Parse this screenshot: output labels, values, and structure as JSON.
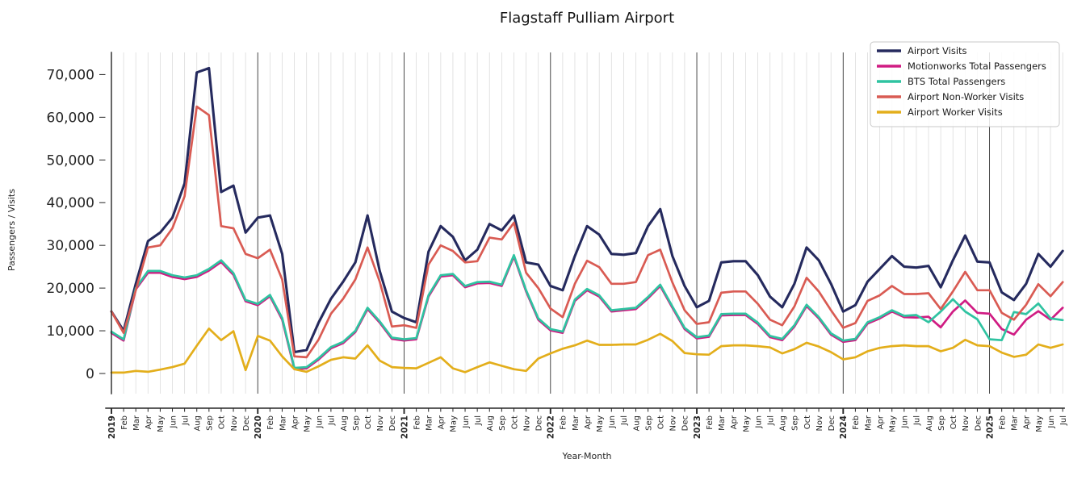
{
  "title": "Flagstaff Pulliam Airport",
  "chart_data": {
    "type": "line",
    "title": "Flagstaff Pulliam Airport",
    "xlabel": "Year-Month",
    "ylabel": "Passengers / Visits",
    "legend_position": "upper right",
    "grid": "vertical gridline at every month; dark vertical line at every January",
    "ylim": [
      -4700,
      75300
    ],
    "yticks": [
      0,
      10000,
      20000,
      30000,
      40000,
      50000,
      60000,
      70000
    ],
    "ytick_labels": [
      "0",
      "10,000",
      "20,000",
      "30,000",
      "40,000",
      "50,000",
      "60,000",
      "70,000"
    ],
    "x_tick_labels": [
      "2019",
      "Feb",
      "Mar",
      "Apr",
      "May",
      "Jun",
      "Jul",
      "Aug",
      "Sep",
      "Oct",
      "Nov",
      "Dec",
      "2020",
      "Feb",
      "Mar",
      "Apr",
      "May",
      "Jun",
      "Jul",
      "Aug",
      "Sep",
      "Oct",
      "Nov",
      "Dec",
      "2021",
      "Feb",
      "Mar",
      "Apr",
      "May",
      "Jun",
      "Jul",
      "Aug",
      "Sep",
      "Oct",
      "Nov",
      "Dec",
      "2022",
      "Feb",
      "Mar",
      "Apr",
      "May",
      "Jun",
      "Jul",
      "Aug",
      "Sep",
      "Oct",
      "Nov",
      "Dec",
      "2023",
      "Feb",
      "Mar",
      "Apr",
      "May",
      "Jun",
      "Jul",
      "Aug",
      "Sep",
      "Oct",
      "Nov",
      "Dec",
      "2024",
      "Feb",
      "Mar",
      "Apr",
      "May",
      "Jun",
      "Jul",
      "Aug",
      "Sep",
      "Oct",
      "Nov",
      "Dec",
      "2025",
      "Feb",
      "Mar",
      "Apr",
      "May",
      "Jun",
      "Jul"
    ],
    "series": [
      {
        "name": "Airport Visits",
        "color": "#252a5e",
        "width": 3.1,
        "values": [
          14500,
          10000,
          21000,
          31000,
          33000,
          36500,
          44500,
          70500,
          71500,
          42500,
          44000,
          33000,
          36500,
          37000,
          28000,
          5000,
          5500,
          12000,
          17500,
          21500,
          26000,
          37000,
          24000,
          14500,
          13000,
          12000,
          28500,
          34500,
          32000,
          26500,
          29000,
          35000,
          33500,
          37000,
          26000,
          25500,
          20500,
          19500,
          27500,
          34500,
          32500,
          28000,
          27800,
          28200,
          34500,
          38500,
          27500,
          20500,
          15500,
          17000,
          26000,
          26300,
          26300,
          23000,
          18000,
          15500,
          21000,
          29500,
          26500,
          21000,
          14500,
          16000,
          21500,
          24500,
          27500,
          25000,
          24800,
          25200,
          20200,
          26500,
          32300,
          26200,
          26000,
          19000,
          17200,
          21000,
          28000,
          25000,
          28700
        ]
      },
      {
        "name": "Motionworks Total Passengers",
        "color": "#d01c83",
        "width": 2.7,
        "values": [
          9500,
          7700,
          19700,
          23600,
          23600,
          22600,
          22100,
          22600,
          24100,
          26100,
          23100,
          16900,
          16000,
          18100,
          12600,
          1000,
          1200,
          3300,
          5900,
          7100,
          9700,
          15100,
          11900,
          8100,
          7700,
          8000,
          18000,
          22700,
          23000,
          20200,
          21100,
          21200,
          20500,
          27400,
          19200,
          12600,
          10100,
          9500,
          17000,
          19500,
          18000,
          14500,
          14800,
          15100,
          17600,
          20500,
          15400,
          10400,
          8200,
          8600,
          13600,
          13700,
          13700,
          11600,
          8500,
          7800,
          11000,
          15800,
          12900,
          9100,
          7400,
          7800,
          11700,
          12900,
          14500,
          13200,
          13100,
          13300,
          10800,
          14500,
          17100,
          14200,
          14000,
          10400,
          9100,
          12600,
          14600,
          12600,
          15400
        ]
      },
      {
        "name": "BTS Total Passengers",
        "color": "#2fc3a1",
        "width": 2.7,
        "values": [
          9800,
          8000,
          20000,
          24000,
          24000,
          23000,
          22500,
          23000,
          24500,
          26500,
          23500,
          17200,
          16300,
          18400,
          13000,
          1300,
          1500,
          3600,
          6200,
          7400,
          10000,
          15400,
          12200,
          8400,
          8000,
          8300,
          18300,
          23000,
          23300,
          20500,
          21400,
          21500,
          20800,
          27700,
          19500,
          12900,
          10400,
          9800,
          17300,
          19800,
          18300,
          14800,
          15100,
          15400,
          17900,
          20800,
          15700,
          10700,
          8500,
          8900,
          13900,
          14000,
          14000,
          11900,
          8800,
          8100,
          11300,
          16100,
          13200,
          9400,
          7700,
          8100,
          12000,
          13200,
          14800,
          13500,
          13700,
          12000,
          14500,
          17400,
          14500,
          12700,
          8000,
          7800,
          14400,
          13900,
          16400,
          12900,
          12500
        ]
      },
      {
        "name": "Airport Non-Worker Visits",
        "color": "#d95b53",
        "width": 2.7,
        "values": [
          14500,
          9500,
          19500,
          29500,
          30000,
          34000,
          41500,
          62500,
          60500,
          34500,
          34000,
          28000,
          27000,
          29000,
          22000,
          4000,
          3800,
          8000,
          14000,
          17500,
          22000,
          29500,
          21500,
          11000,
          11300,
          10700,
          25500,
          30000,
          28700,
          26000,
          26300,
          31800,
          31400,
          35300,
          23600,
          20000,
          15200,
          13200,
          21000,
          26400,
          24900,
          21000,
          21000,
          21400,
          27700,
          29000,
          21300,
          14800,
          11600,
          12000,
          18900,
          19200,
          19200,
          16300,
          12600,
          11300,
          15700,
          22400,
          19200,
          14800,
          10700,
          11800,
          17000,
          18300,
          20500,
          18600,
          18600,
          18800,
          15100,
          19200,
          23800,
          19500,
          19500,
          14200,
          12600,
          16100,
          20900,
          18100,
          21400
        ]
      },
      {
        "name": "Airport Worker Visits",
        "color": "#e3ae1b",
        "width": 2.7,
        "values": [
          200,
          200,
          600,
          400,
          900,
          1500,
          2300,
          6500,
          10500,
          7800,
          9900,
          800,
          8800,
          7700,
          4000,
          1000,
          400,
          1700,
          3200,
          3800,
          3500,
          6600,
          3000,
          1500,
          1300,
          1200,
          2500,
          3800,
          1200,
          300,
          1500,
          2600,
          1800,
          1000,
          600,
          3500,
          4700,
          5800,
          6600,
          7700,
          6700,
          6700,
          6800,
          6800,
          7900,
          9300,
          7600,
          4800,
          4500,
          4400,
          6400,
          6600,
          6600,
          6400,
          6100,
          4700,
          5700,
          7200,
          6300,
          5000,
          3300,
          3800,
          5200,
          6000,
          6400,
          6600,
          6400,
          6400,
          5200,
          6000,
          7900,
          6600,
          6400,
          4900,
          3900,
          4400,
          6800,
          6000,
          6800
        ]
      }
    ]
  }
}
